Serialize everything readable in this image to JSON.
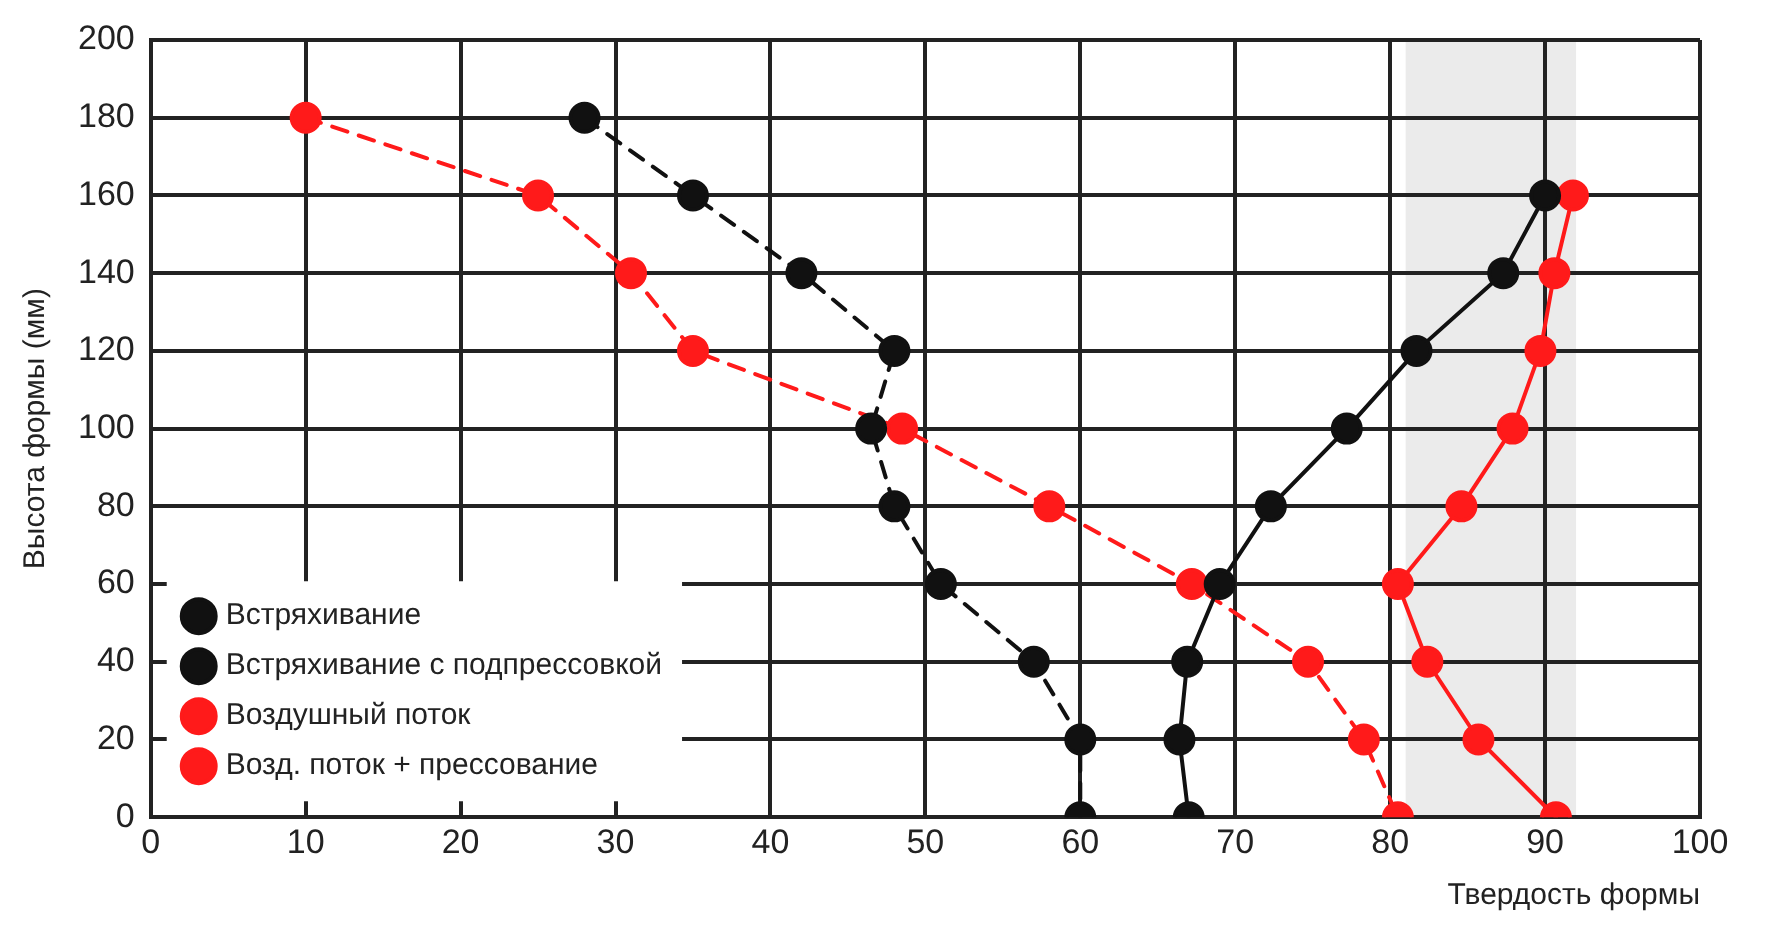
{
  "chart_data": {
    "type": "line",
    "xlabel": "Твердость формы",
    "ylabel": "Высота формы (мм)",
    "xlim": [
      0,
      100
    ],
    "xticks": [
      0,
      10,
      20,
      30,
      40,
      50,
      60,
      70,
      80,
      90,
      100
    ],
    "ylim": [
      0,
      200
    ],
    "yticks": [
      0,
      20,
      40,
      60,
      80,
      100,
      120,
      140,
      160,
      180,
      200
    ],
    "grid": true,
    "legend": "bottom left",
    "marker": "circle",
    "bands": [
      {
        "axis": "x",
        "from": 81,
        "to": 92,
        "color": "#ebebeb"
      }
    ],
    "series": [
      {
        "name": "Встряхивание",
        "color": "#111111",
        "line_style": "dashed",
        "x": [
          28,
          35,
          42,
          48,
          46.5,
          48,
          51,
          57,
          60,
          60
        ],
        "values": [
          180,
          160,
          140,
          120,
          100,
          80,
          60,
          40,
          20,
          0
        ]
      },
      {
        "name": "Встряхивание с подпрессовкой",
        "color": "#111111",
        "line_style": "solid",
        "x": [
          90,
          87.3,
          81.7,
          77.2,
          72.3,
          69,
          66.9,
          66.4,
          67
        ],
        "values": [
          160,
          140,
          120,
          100,
          80,
          60,
          40,
          20,
          0
        ]
      },
      {
        "name": "Воздушный поток",
        "color": "#ff1a1a",
        "line_style": "dashed",
        "x": [
          10,
          25,
          31,
          35,
          48.5,
          58,
          67.2,
          74.7,
          78.3,
          80.5
        ],
        "values": [
          180,
          160,
          140,
          120,
          100,
          80,
          60,
          40,
          20,
          0
        ]
      },
      {
        "name": "Возд. поток + прессование",
        "color": "#ff1a1a",
        "line_style": "solid",
        "x": [
          91.8,
          90.6,
          89.7,
          87.9,
          84.6,
          80.5,
          82.4,
          85.7,
          90.7
        ],
        "values": [
          160,
          140,
          120,
          100,
          80,
          60,
          40,
          20,
          0
        ]
      }
    ]
  }
}
